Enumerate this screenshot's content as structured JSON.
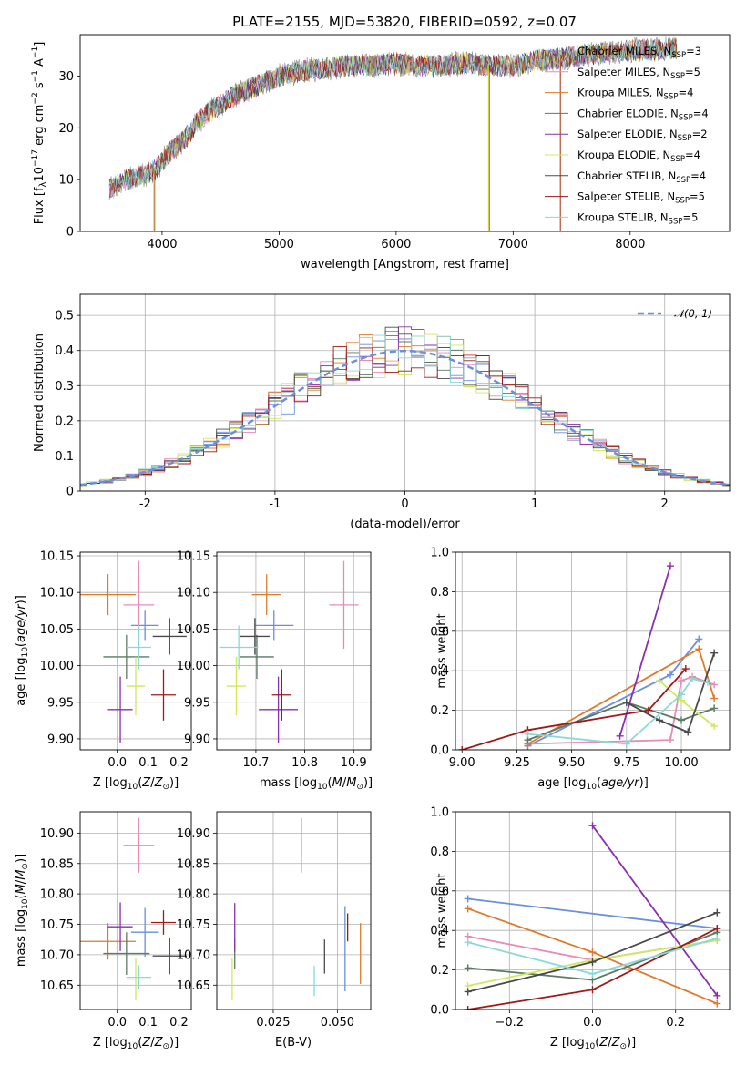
{
  "colors": {
    "Chabrier MILES": "#6a8ee0",
    "Salpeter MILES": "#e88bb5",
    "Kroupa MILES": "#e07a2a",
    "Chabrier ELODIE": "#5c7a62",
    "Salpeter ELODIE": "#8a2fb0",
    "Kroupa ELODIE": "#d0e85a",
    "Chabrier STELIB": "#4a4a4a",
    "Salpeter STELIB": "#a01818",
    "Kroupa STELIB": "#8ad8d8",
    "gaussian": "#6a8ee0"
  },
  "chart_data": [
    {
      "id": "spectrum",
      "type": "line",
      "title": "PLATE=2155, MJD=53820, FIBERID=0592, z=0.07",
      "xlabel": "wavelength [Angstrom, rest frame]",
      "ylabel": "Flux [f_λ 10^-17 erg cm^-2 s^-1 A^-1]",
      "xlim": [
        3300,
        8850
      ],
      "ylim": [
        0,
        38
      ],
      "xticks": [
        4000,
        5000,
        6000,
        7000,
        8000
      ],
      "yticks": [
        0,
        10,
        20,
        30
      ],
      "grid": false,
      "legend_position": "right",
      "series": [
        {
          "name": "Chabrier MILES",
          "nssp": "3"
        },
        {
          "name": "Salpeter MILES",
          "nssp": "5"
        },
        {
          "name": "Kroupa MILES",
          "nssp": "4"
        },
        {
          "name": "Chabrier ELODIE",
          "nssp": "4"
        },
        {
          "name": "Salpeter ELODIE",
          "nssp": "2"
        },
        {
          "name": "Kroupa ELODIE",
          "nssp": "4"
        },
        {
          "name": "Chabrier STELIB",
          "nssp": "4"
        },
        {
          "name": "Salpeter STELIB",
          "nssp": "5"
        },
        {
          "name": "Kroupa STELIB",
          "nssp": "5"
        }
      ],
      "continuum": {
        "x": [
          3550,
          3700,
          3850,
          3950,
          4050,
          4200,
          4300,
          4400,
          4600,
          4800,
          5000,
          5200,
          5400,
          5600,
          5800,
          6000,
          6200,
          6400,
          6600,
          6800,
          7000,
          7200,
          7400,
          7600,
          7800,
          8000,
          8200,
          8400
        ],
        "y": [
          8,
          10,
          11,
          12,
          15,
          18,
          21,
          23,
          26,
          28,
          30,
          31,
          31.5,
          32,
          32,
          32.5,
          32,
          32,
          32.5,
          32,
          32,
          33,
          33.5,
          34,
          34.5,
          35,
          35,
          35.5
        ]
      },
      "sky_line_drops": [
        3930,
        6790,
        7400
      ]
    },
    {
      "id": "residuals",
      "type": "line",
      "xlabel": "(data-model)/error",
      "ylabel": "Normed distribution",
      "xlim": [
        -2.5,
        2.5
      ],
      "ylim": [
        0,
        0.56
      ],
      "xticks": [
        -2,
        -1,
        0,
        1,
        2
      ],
      "yticks": [
        0,
        0.1,
        0.2,
        0.3,
        0.4,
        0.5
      ],
      "grid": true,
      "legend": "𝒩(0, 1)",
      "legend_position": "top-right",
      "histogram_bin_width": 0.1
    },
    {
      "id": "age-vs-z",
      "type": "scatter",
      "xlabel": "Z [log10(Z/Z⊙)]",
      "ylabel": "age [log10(age/yr)]",
      "xlim": [
        -0.12,
        0.24
      ],
      "ylim": [
        9.885,
        10.155
      ],
      "xticks": [
        0.0,
        0.1,
        0.2
      ],
      "xtick_labels": [
        "0.0",
        "0.1",
        "0.2"
      ],
      "yticks": [
        9.9,
        9.95,
        10.0,
        10.05,
        10.1,
        10.15
      ],
      "ytick_labels": [
        "9.90",
        "9.95",
        "10.00",
        "10.05",
        "10.10",
        "10.15"
      ],
      "grid": true,
      "points": [
        {
          "series": "Chabrier MILES",
          "x": 0.09,
          "y": 10.055,
          "xerr": 0.045,
          "yerr": 0.02
        },
        {
          "series": "Salpeter MILES",
          "x": 0.07,
          "y": 10.083,
          "xerr": 0.05,
          "yerr": 0.06
        },
        {
          "series": "Kroupa MILES",
          "x": -0.03,
          "y": 10.097,
          "xerr": 0.09,
          "yerr": 0.028
        },
        {
          "series": "Chabrier ELODIE",
          "x": 0.03,
          "y": 10.012,
          "xerr": 0.075,
          "yerr": 0.03
        },
        {
          "series": "Salpeter ELODIE",
          "x": 0.01,
          "y": 9.94,
          "xerr": 0.04,
          "yerr": 0.045
        },
        {
          "series": "Kroupa ELODIE",
          "x": 0.06,
          "y": 9.972,
          "xerr": 0.03,
          "yerr": 0.04
        },
        {
          "series": "Chabrier STELIB",
          "x": 0.17,
          "y": 10.04,
          "xerr": 0.055,
          "yerr": 0.025
        },
        {
          "series": "Salpeter STELIB",
          "x": 0.15,
          "y": 9.96,
          "xerr": 0.04,
          "yerr": 0.035
        },
        {
          "series": "Kroupa STELIB",
          "x": 0.07,
          "y": 10.025,
          "xerr": 0.04,
          "yerr": 0.03
        }
      ]
    },
    {
      "id": "age-vs-mass",
      "type": "scatter",
      "xlabel": "mass [log10(M/M⊙)]",
      "ylabel": "",
      "xlim": [
        10.62,
        10.935
      ],
      "ylim": [
        9.885,
        10.155
      ],
      "xticks": [
        10.7,
        10.8,
        10.9
      ],
      "xtick_labels": [
        "10.7",
        "10.8",
        "10.9"
      ],
      "yticks": [
        9.9,
        9.95,
        10.0,
        10.05,
        10.1,
        10.15
      ],
      "ytick_labels": [
        "9.90",
        "9.95",
        "10.00",
        "10.05",
        "10.10",
        "10.15"
      ],
      "grid": true,
      "points": [
        {
          "series": "Chabrier MILES",
          "x": 10.737,
          "y": 10.055,
          "xerr": 0.04,
          "yerr": 0.02
        },
        {
          "series": "Salpeter MILES",
          "x": 10.88,
          "y": 10.083,
          "xerr": 0.03,
          "yerr": 0.06
        },
        {
          "series": "Kroupa MILES",
          "x": 10.722,
          "y": 10.097,
          "xerr": 0.03,
          "yerr": 0.028
        },
        {
          "series": "Chabrier ELODIE",
          "x": 10.702,
          "y": 10.012,
          "xerr": 0.035,
          "yerr": 0.03
        },
        {
          "series": "Salpeter ELODIE",
          "x": 10.746,
          "y": 9.94,
          "xerr": 0.04,
          "yerr": 0.045
        },
        {
          "series": "Kroupa ELODIE",
          "x": 10.66,
          "y": 9.972,
          "xerr": 0.02,
          "yerr": 0.04
        },
        {
          "series": "Chabrier STELIB",
          "x": 10.698,
          "y": 10.04,
          "xerr": 0.03,
          "yerr": 0.025
        },
        {
          "series": "Salpeter STELIB",
          "x": 10.753,
          "y": 9.96,
          "xerr": 0.02,
          "yerr": 0.035
        },
        {
          "series": "Kroupa STELIB",
          "x": 10.665,
          "y": 10.025,
          "xerr": 0.04,
          "yerr": 0.03
        }
      ]
    },
    {
      "id": "weight-vs-age",
      "type": "line",
      "xlabel": "age [log10(age/yr)]",
      "ylabel": "mass weight",
      "xlim": [
        8.97,
        10.22
      ],
      "ylim": [
        0,
        1.0
      ],
      "xticks": [
        9.0,
        9.25,
        9.5,
        9.75,
        10.0
      ],
      "xtick_labels": [
        "9.00",
        "9.25",
        "9.50",
        "9.75",
        "10.00"
      ],
      "yticks": [
        0,
        0.2,
        0.4,
        0.6,
        0.8,
        1.0
      ],
      "ytick_labels": [
        "0.0",
        "0.2",
        "0.4",
        "0.6",
        "0.8",
        "1.0"
      ],
      "grid": true,
      "series": [
        {
          "name": "Chabrier MILES",
          "x": [
            9.3,
            9.95,
            10.08
          ],
          "y": [
            0.02,
            0.38,
            0.56
          ]
        },
        {
          "name": "Salpeter MILES",
          "x": [
            9.3,
            9.95,
            10.0,
            10.05,
            10.15
          ],
          "y": [
            0.03,
            0.05,
            0.35,
            0.37,
            0.33
          ]
        },
        {
          "name": "Kroupa MILES",
          "x": [
            9.3,
            10.08,
            10.15
          ],
          "y": [
            0.03,
            0.51,
            0.26
          ]
        },
        {
          "name": "Chabrier ELODIE",
          "x": [
            9.3,
            9.75,
            10.0,
            10.15
          ],
          "y": [
            0.05,
            0.24,
            0.15,
            0.21
          ]
        },
        {
          "name": "Salpeter ELODIE",
          "x": [
            9.72,
            9.95
          ],
          "y": [
            0.07,
            0.93
          ]
        },
        {
          "name": "Kroupa ELODIE",
          "x": [
            9.9,
            10.0,
            10.15
          ],
          "y": [
            0.35,
            0.25,
            0.12
          ]
        },
        {
          "name": "Chabrier STELIB",
          "x": [
            9.75,
            9.9,
            10.03,
            10.15
          ],
          "y": [
            0.24,
            0.15,
            0.09,
            0.49
          ]
        },
        {
          "name": "Salpeter STELIB",
          "x": [
            9.0,
            9.3,
            9.85,
            10.02
          ],
          "y": [
            0.0,
            0.1,
            0.2,
            0.41
          ]
        },
        {
          "name": "Kroupa STELIB",
          "x": [
            9.3,
            9.75,
            10.0,
            10.05,
            10.12
          ],
          "y": [
            0.08,
            0.03,
            0.28,
            0.36,
            0.34
          ]
        }
      ]
    },
    {
      "id": "mass-vs-z",
      "type": "scatter",
      "xlabel": "Z [log10(Z/Z⊙)]",
      "ylabel": "mass [log10(M/M⊙)]",
      "xlim": [
        -0.12,
        0.24
      ],
      "ylim": [
        10.61,
        10.935
      ],
      "xticks": [
        0.0,
        0.1,
        0.2
      ],
      "xtick_labels": [
        "0.0",
        "0.1",
        "0.2"
      ],
      "yticks": [
        10.65,
        10.7,
        10.75,
        10.8,
        10.85,
        10.9
      ],
      "ytick_labels": [
        "10.65",
        "10.70",
        "10.75",
        "10.80",
        "10.85",
        "10.90"
      ],
      "grid": true,
      "points": [
        {
          "series": "Chabrier MILES",
          "x": 0.09,
          "y": 10.737,
          "xerr": 0.045,
          "yerr": 0.04
        },
        {
          "series": "Salpeter MILES",
          "x": 0.07,
          "y": 10.88,
          "xerr": 0.05,
          "yerr": 0.045
        },
        {
          "series": "Kroupa MILES",
          "x": -0.03,
          "y": 10.722,
          "xerr": 0.09,
          "yerr": 0.03
        },
        {
          "series": "Chabrier ELODIE",
          "x": 0.03,
          "y": 10.702,
          "xerr": 0.075,
          "yerr": 0.035
        },
        {
          "series": "Salpeter ELODIE",
          "x": 0.01,
          "y": 10.746,
          "xerr": 0.04,
          "yerr": 0.04
        },
        {
          "series": "Kroupa ELODIE",
          "x": 0.06,
          "y": 10.66,
          "xerr": 0.03,
          "yerr": 0.035
        },
        {
          "series": "Chabrier STELIB",
          "x": 0.17,
          "y": 10.698,
          "xerr": 0.055,
          "yerr": 0.03
        },
        {
          "series": "Salpeter STELIB",
          "x": 0.15,
          "y": 10.753,
          "xerr": 0.04,
          "yerr": 0.02
        },
        {
          "series": "Kroupa STELIB",
          "x": 0.07,
          "y": 10.663,
          "xerr": 0.04,
          "yerr": 0.02
        }
      ]
    },
    {
      "id": "mass-vs-ebv",
      "type": "scatter",
      "xlabel": "E(B-V)",
      "ylabel": "",
      "xlim": [
        0.003,
        0.063
      ],
      "ylim": [
        10.61,
        10.935
      ],
      "xticks": [
        0.025,
        0.05
      ],
      "xtick_labels": [
        "0.025",
        "0.050"
      ],
      "yticks": [
        10.65,
        10.7,
        10.75,
        10.8,
        10.85,
        10.9
      ],
      "ytick_labels": [
        "10.65",
        "10.70",
        "10.75",
        "10.80",
        "10.85",
        "10.90"
      ],
      "grid": true,
      "points": [
        {
          "series": "Chabrier MILES",
          "x": 0.053,
          "y": 10.71,
          "xerr": 0,
          "yerr": 0.07
        },
        {
          "series": "Salpeter MILES",
          "x": 0.036,
          "y": 10.88,
          "xerr": 0,
          "yerr": 0.045
        },
        {
          "series": "Kroupa MILES",
          "x": 0.059,
          "y": 10.702,
          "xerr": 0,
          "yerr": 0.05
        },
        {
          "series": "Chabrier ELODIE",
          "x": 0.01,
          "y": 10.702,
          "xerr": 0,
          "yerr": 0.025
        },
        {
          "series": "Salpeter ELODIE",
          "x": 0.01,
          "y": 10.745,
          "xerr": 0,
          "yerr": 0.04
        },
        {
          "series": "Kroupa ELODIE",
          "x": 0.009,
          "y": 10.66,
          "xerr": 0,
          "yerr": 0.035
        },
        {
          "series": "Chabrier STELIB",
          "x": 0.045,
          "y": 10.697,
          "xerr": 0,
          "yerr": 0.028
        },
        {
          "series": "Salpeter STELIB",
          "x": 0.054,
          "y": 10.745,
          "xerr": 0,
          "yerr": 0.023
        },
        {
          "series": "Kroupa STELIB",
          "x": 0.041,
          "y": 10.657,
          "xerr": 0,
          "yerr": 0.025
        }
      ]
    },
    {
      "id": "weight-vs-z",
      "type": "line",
      "xlabel": "Z [log10(Z/Z⊙)]",
      "ylabel": "mass weight",
      "xlim": [
        -0.33,
        0.33
      ],
      "ylim": [
        0,
        1.0
      ],
      "xticks": [
        -0.2,
        0.0,
        0.2
      ],
      "xtick_labels": [
        "−0.2",
        "0.0",
        "0.2"
      ],
      "yticks": [
        0,
        0.2,
        0.4,
        0.6,
        0.8,
        1.0
      ],
      "ytick_labels": [
        "0.0",
        "0.2",
        "0.4",
        "0.6",
        "0.8",
        "1.0"
      ],
      "grid": true,
      "series": [
        {
          "name": "Chabrier MILES",
          "x": [
            -0.3,
            0.3
          ],
          "y": [
            0.56,
            0.41
          ]
        },
        {
          "name": "Salpeter MILES",
          "x": [
            -0.3,
            0.0,
            0.3
          ],
          "y": [
            0.37,
            0.25,
            0.35
          ]
        },
        {
          "name": "Kroupa MILES",
          "x": [
            -0.3,
            0.0,
            0.3
          ],
          "y": [
            0.51,
            0.29,
            0.03
          ]
        },
        {
          "name": "Chabrier ELODIE",
          "x": [
            -0.3,
            0.0,
            0.3
          ],
          "y": [
            0.21,
            0.15,
            0.39
          ]
        },
        {
          "name": "Salpeter ELODIE",
          "x": [
            0.0,
            0.3
          ],
          "y": [
            0.93,
            0.07
          ]
        },
        {
          "name": "Kroupa ELODIE",
          "x": [
            -0.3,
            0.0,
            0.3
          ],
          "y": [
            0.12,
            0.25,
            0.35
          ]
        },
        {
          "name": "Chabrier STELIB",
          "x": [
            -0.3,
            0.0,
            0.3
          ],
          "y": [
            0.09,
            0.24,
            0.49
          ]
        },
        {
          "name": "Salpeter STELIB",
          "x": [
            -0.3,
            0.0,
            0.3
          ],
          "y": [
            0.0,
            0.1,
            0.41
          ]
        },
        {
          "name": "Kroupa STELIB",
          "x": [
            -0.3,
            0.0,
            0.3
          ],
          "y": [
            0.34,
            0.18,
            0.36
          ]
        }
      ]
    }
  ]
}
